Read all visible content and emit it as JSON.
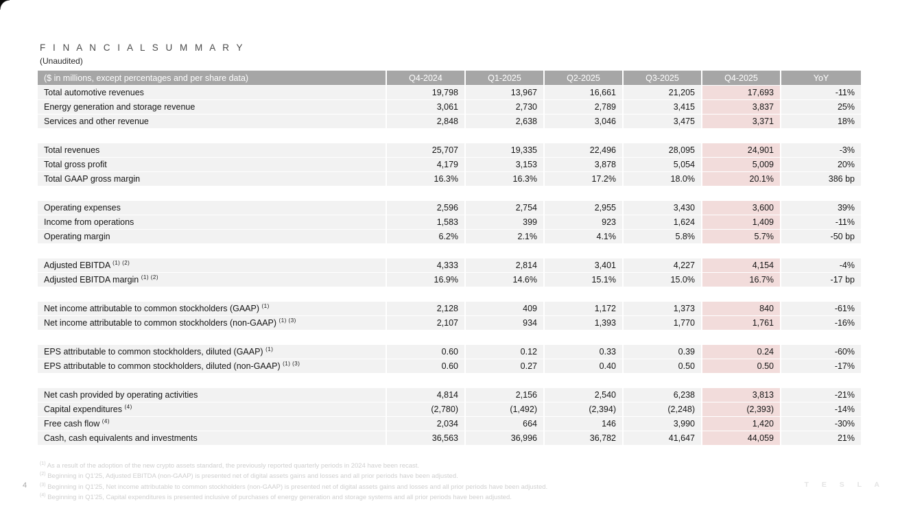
{
  "title": "F I N A N C I A L   S U M M A R Y",
  "subtitle": "(Unaudited)",
  "page_number": "4",
  "brand": "T E S L A",
  "colors": {
    "header_bg": "#a6a6a6",
    "row_bg": "#f2f2f2",
    "highlight_bg": "#f2dcdb"
  },
  "table": {
    "header": {
      "label": "($ in millions, except percentages and per share data)",
      "columns": [
        "Q4-2024",
        "Q1-2025",
        "Q2-2025",
        "Q3-2025",
        "Q4-2025",
        "YoY"
      ]
    },
    "rows": [
      {
        "label": "Total automotive revenues",
        "sup": "",
        "values": [
          "19,798",
          "13,967",
          "16,661",
          "21,205",
          "17,693",
          "-11%"
        ]
      },
      {
        "label": "Energy generation and storage revenue",
        "sup": "",
        "values": [
          "3,061",
          "2,730",
          "2,789",
          "3,415",
          "3,837",
          "25%"
        ]
      },
      {
        "label": "Services and other revenue",
        "sup": "",
        "values": [
          "2,848",
          "2,638",
          "3,046",
          "3,475",
          "3,371",
          "18%"
        ]
      },
      {
        "spacer": true
      },
      {
        "label": "Total revenues",
        "sup": "",
        "values": [
          "25,707",
          "19,335",
          "22,496",
          "28,095",
          "24,901",
          "-3%"
        ]
      },
      {
        "label": "Total gross profit",
        "sup": "",
        "values": [
          "4,179",
          "3,153",
          "3,878",
          "5,054",
          "5,009",
          "20%"
        ]
      },
      {
        "label": "Total GAAP gross margin",
        "sup": "",
        "values": [
          "16.3%",
          "16.3%",
          "17.2%",
          "18.0%",
          "20.1%",
          "386 bp"
        ]
      },
      {
        "spacer": true
      },
      {
        "label": "Operating expenses",
        "sup": "",
        "values": [
          "2,596",
          "2,754",
          "2,955",
          "3,430",
          "3,600",
          "39%"
        ]
      },
      {
        "label": "Income from operations",
        "sup": "",
        "values": [
          "1,583",
          "399",
          "923",
          "1,624",
          "1,409",
          "-11%"
        ]
      },
      {
        "label": "Operating margin",
        "sup": "",
        "values": [
          "6.2%",
          "2.1%",
          "4.1%",
          "5.8%",
          "5.7%",
          "-50 bp"
        ]
      },
      {
        "spacer": true
      },
      {
        "label": "Adjusted EBITDA",
        "sup": "(1) (2)",
        "values": [
          "4,333",
          "2,814",
          "3,401",
          "4,227",
          "4,154",
          "-4%"
        ]
      },
      {
        "label": "Adjusted EBITDA margin",
        "sup": "(1) (2)",
        "values": [
          "16.9%",
          "14.6%",
          "15.1%",
          "15.0%",
          "16.7%",
          "-17 bp"
        ]
      },
      {
        "spacer": true
      },
      {
        "label": "Net income attributable to common stockholders (GAAP)",
        "sup": "(1)",
        "values": [
          "2,128",
          "409",
          "1,172",
          "1,373",
          "840",
          "-61%"
        ]
      },
      {
        "label": "Net income attributable to common stockholders (non-GAAP)",
        "sup": "(1) (3)",
        "values": [
          "2,107",
          "934",
          "1,393",
          "1,770",
          "1,761",
          "-16%"
        ]
      },
      {
        "spacer": true
      },
      {
        "label": "EPS attributable to common stockholders, diluted (GAAP)",
        "sup": "(1)",
        "values": [
          "0.60",
          "0.12",
          "0.33",
          "0.39",
          "0.24",
          "-60%"
        ]
      },
      {
        "label": "EPS attributable to common stockholders, diluted (non-GAAP)",
        "sup": "(1) (3)",
        "values": [
          "0.60",
          "0.27",
          "0.40",
          "0.50",
          "0.50",
          "-17%"
        ]
      },
      {
        "spacer": true
      },
      {
        "label": "Net cash provided by operating activities",
        "sup": "",
        "values": [
          "4,814",
          "2,156",
          "2,540",
          "6,238",
          "3,813",
          "-21%"
        ]
      },
      {
        "label": "Capital expenditures",
        "sup": "(4)",
        "values": [
          "(2,780)",
          "(1,492)",
          "(2,394)",
          "(2,248)",
          "(2,393)",
          "-14%"
        ]
      },
      {
        "label": "Free cash flow",
        "sup": "(4)",
        "values": [
          "2,034",
          "664",
          "146",
          "3,990",
          "1,420",
          "-30%"
        ]
      },
      {
        "label": "Cash, cash equivalents and investments",
        "sup": "",
        "values": [
          "36,563",
          "36,996",
          "36,782",
          "41,647",
          "44,059",
          "21%"
        ]
      }
    ]
  },
  "footnotes": [
    {
      "marker": "(1)",
      "text": "As a result of the adoption of the new crypto assets standard, the previously reported quarterly periods in 2024 have been recast."
    },
    {
      "marker": "(2)",
      "text": "Beginning in Q1'25, Adjusted EBITDA (non-GAAP) is presented net of digital assets gains and losses and all prior periods have been adjusted."
    },
    {
      "marker": "(3)",
      "text": "Beginning in Q1'25, Net income attributable to common stockholders (non-GAAP) is presented net of digital assets gains and losses and all prior periods have been adjusted."
    },
    {
      "marker": "(4)",
      "text": "Beginning in Q1'25, Capital expenditures is presented inclusive of purchases of energy generation and storage systems and all prior periods have been adjusted."
    }
  ]
}
